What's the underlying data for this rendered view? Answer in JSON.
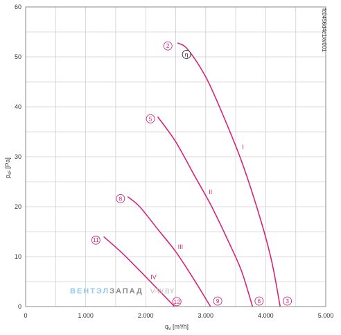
{
  "chart_data": {
    "type": "line",
    "doc_code": "fc0456d4c1xv001",
    "ylabel_main": "p",
    "ylabel_sub": "sF",
    "ylabel_unit": "[Pa]",
    "xlabel_main": "q",
    "xlabel_sub": "V",
    "xlabel_unit": "[m³/h]",
    "xlim": [
      0,
      5000
    ],
    "ylim": [
      0,
      60
    ],
    "x_ticks": [
      {
        "value": 0,
        "label": "0"
      },
      {
        "value": 1000,
        "label": "1.000"
      },
      {
        "value": 2000,
        "label": "2.000"
      },
      {
        "value": 3000,
        "label": "3.000"
      },
      {
        "value": 4000,
        "label": "4.000"
      },
      {
        "value": 5000,
        "label": "5.000"
      }
    ],
    "y_ticks": [
      {
        "value": 0,
        "label": "0"
      },
      {
        "value": 10,
        "label": "10"
      },
      {
        "value": 20,
        "label": "20"
      },
      {
        "value": 30,
        "label": "30"
      },
      {
        "value": 40,
        "label": "40"
      },
      {
        "value": 50,
        "label": "50"
      },
      {
        "value": 60,
        "label": "60"
      }
    ],
    "grid": true,
    "curve_color": "#d6247a",
    "series": [
      {
        "name": "I",
        "label_at": [
          3620,
          31.5
        ],
        "points": [
          [
            2530,
            52.8
          ],
          [
            2700,
            51.5
          ],
          [
            3000,
            46
          ],
          [
            3300,
            38
          ],
          [
            3600,
            29
          ],
          [
            3900,
            18
          ],
          [
            4100,
            9
          ],
          [
            4240,
            0
          ]
        ]
      },
      {
        "name": "II",
        "label_at": [
          3080,
          22.5
        ],
        "points": [
          [
            2200,
            38
          ],
          [
            2500,
            33
          ],
          [
            2800,
            26.5
          ],
          [
            3100,
            20
          ],
          [
            3400,
            12.5
          ],
          [
            3600,
            7
          ],
          [
            3780,
            0
          ]
        ]
      },
      {
        "name": "III",
        "label_at": [
          2580,
          11.5
        ],
        "points": [
          [
            1700,
            22
          ],
          [
            1900,
            20
          ],
          [
            2200,
            15.5
          ],
          [
            2500,
            11
          ],
          [
            2800,
            5.5
          ],
          [
            3080,
            0
          ]
        ]
      },
      {
        "name": "IV",
        "label_at": [
          2130,
          5.5
        ],
        "points": [
          [
            1300,
            14
          ],
          [
            1600,
            10.8
          ],
          [
            1900,
            7.2
          ],
          [
            2200,
            3.5
          ],
          [
            2480,
            0
          ]
        ]
      }
    ],
    "markers": [
      {
        "label": "2",
        "x": 2370,
        "y": 52.2,
        "style": "pink"
      },
      {
        "label": "η",
        "x": 2680,
        "y": 50.5,
        "style": "black"
      },
      {
        "label": "5",
        "x": 2080,
        "y": 37.6,
        "style": "pink"
      },
      {
        "label": "8",
        "x": 1580,
        "y": 21.6,
        "style": "pink"
      },
      {
        "label": "11",
        "x": 1170,
        "y": 13.3,
        "style": "pink"
      },
      {
        "label": "12",
        "x": 2520,
        "y": 1.0,
        "style": "pink"
      },
      {
        "label": "9",
        "x": 3200,
        "y": 1.1,
        "style": "pink"
      },
      {
        "label": "6",
        "x": 3890,
        "y": 1.1,
        "style": "pink"
      },
      {
        "label": "3",
        "x": 4360,
        "y": 1.1,
        "style": "pink"
      }
    ]
  },
  "watermark": {
    "part1": "ВЕНТЭЛ",
    "part2": "ЗАПАД",
    "part3": "V-W.BY",
    "color1": "#8ec9ec",
    "color2": "#8a8a8a",
    "color3": "#b8b8b8"
  }
}
